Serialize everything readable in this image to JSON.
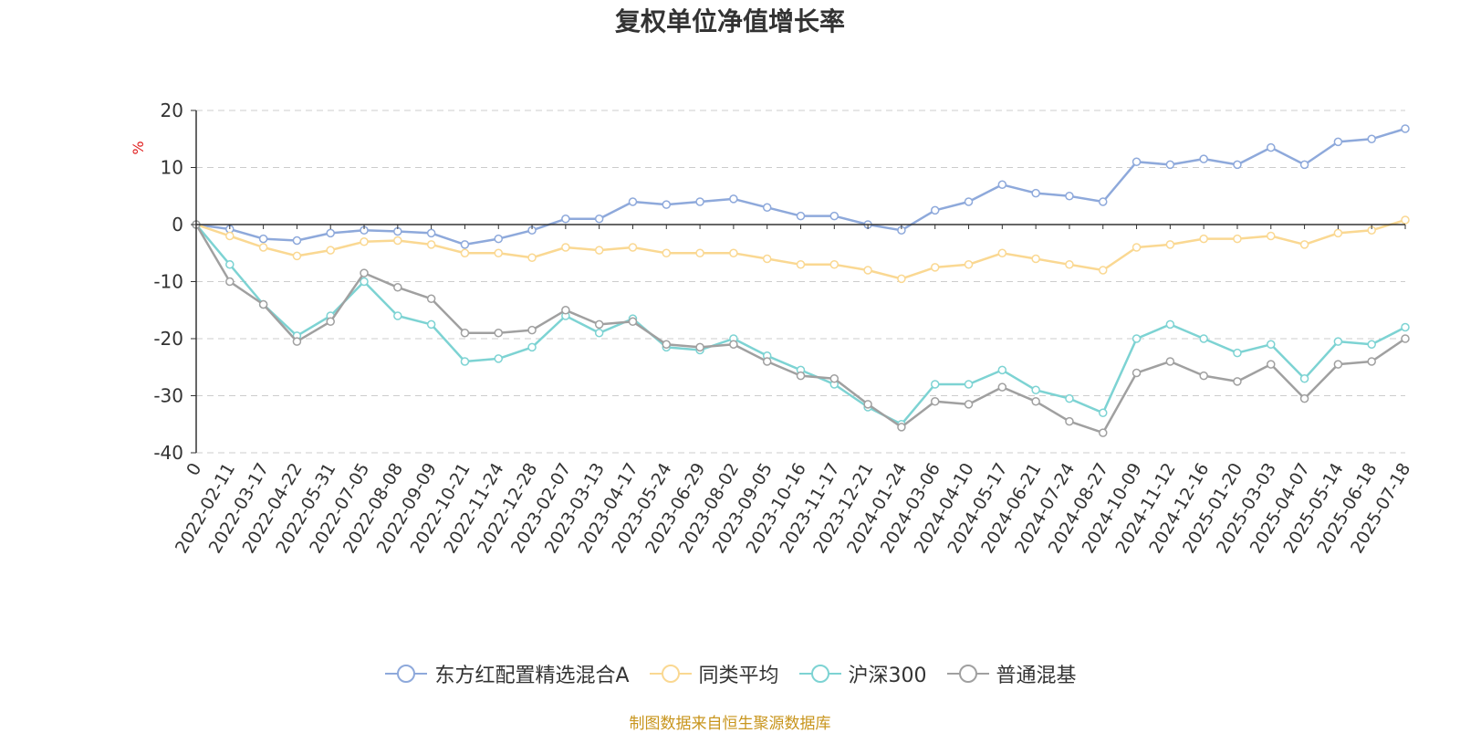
{
  "chart_data": {
    "type": "line",
    "title": "复权单位净值增长率",
    "ylabel": "%",
    "ylim": [
      -40,
      20
    ],
    "yticks": [
      -40,
      -30,
      -20,
      -10,
      0,
      10,
      20
    ],
    "grid": true,
    "legend_position": "bottom",
    "x": [
      "0",
      "2022-02-11",
      "2022-03-17",
      "2022-04-22",
      "2022-05-31",
      "2022-07-05",
      "2022-08-08",
      "2022-09-09",
      "2022-10-21",
      "2022-11-24",
      "2022-12-28",
      "2023-02-07",
      "2023-03-13",
      "2023-04-17",
      "2023-05-24",
      "2023-06-29",
      "2023-08-02",
      "2023-09-05",
      "2023-10-16",
      "2023-11-17",
      "2023-12-21",
      "2024-01-24",
      "2024-03-06",
      "2024-04-10",
      "2024-05-17",
      "2024-06-21",
      "2024-07-24",
      "2024-08-27",
      "2024-10-09",
      "2024-11-12",
      "2024-12-16",
      "2025-01-20",
      "2025-03-03",
      "2025-04-07",
      "2025-05-14",
      "2025-06-18",
      "2025-07-18"
    ],
    "series": [
      {
        "name": "东方红配置精选混合A",
        "color": "#8ea9db",
        "values": [
          0,
          -0.8,
          -2.5,
          -2.8,
          -1.5,
          -1.0,
          -1.2,
          -1.5,
          -3.5,
          -2.5,
          -1.0,
          1.0,
          1.0,
          4.0,
          3.5,
          4.0,
          4.5,
          3.0,
          1.5,
          1.5,
          0,
          -1.0,
          2.5,
          4.0,
          7.0,
          5.5,
          5.0,
          4.0,
          11.0,
          10.5,
          11.5,
          10.5,
          13.5,
          10.5,
          14.5,
          15.0,
          16.8
        ]
      },
      {
        "name": "同类平均",
        "color": "#fad892",
        "values": [
          0,
          -2.0,
          -4.0,
          -5.5,
          -4.5,
          -3.0,
          -2.8,
          -3.5,
          -5.0,
          -5.0,
          -5.8,
          -4.0,
          -4.5,
          -4.0,
          -5.0,
          -5.0,
          -5.0,
          -6.0,
          -7.0,
          -7.0,
          -8.0,
          -9.5,
          -7.5,
          -7.0,
          -5.0,
          -6.0,
          -7.0,
          -8.0,
          -4.0,
          -3.5,
          -2.5,
          -2.5,
          -2.0,
          -3.5,
          -1.5,
          -1.0,
          0.8
        ]
      },
      {
        "name": "沪深300",
        "color": "#7dd3d3",
        "values": [
          0,
          -7.0,
          -14.0,
          -19.5,
          -16.0,
          -10.0,
          -16.0,
          -17.5,
          -24.0,
          -23.5,
          -21.5,
          -16.0,
          -19.0,
          -16.5,
          -21.5,
          -22.0,
          -20.0,
          -23.0,
          -25.5,
          -28.0,
          -32.0,
          -35.0,
          -28.0,
          -28.0,
          -25.5,
          -29.0,
          -30.5,
          -33.0,
          -20.0,
          -17.5,
          -20.0,
          -22.5,
          -21.0,
          -27.0,
          -20.5,
          -21.0,
          -18.0
        ]
      },
      {
        "name": "普通混基",
        "color": "#a0a0a0",
        "values": [
          0,
          -10.0,
          -14.0,
          -20.5,
          -17.0,
          -8.5,
          -11.0,
          -13.0,
          -19.0,
          -19.0,
          -18.5,
          -15.0,
          -17.5,
          -17.0,
          -21.0,
          -21.5,
          -21.0,
          -24.0,
          -26.5,
          -27.0,
          -31.5,
          -35.5,
          -31.0,
          -31.5,
          -28.5,
          -31.0,
          -34.5,
          -36.5,
          -26.0,
          -24.0,
          -26.5,
          -27.5,
          -24.5,
          -30.5,
          -24.5,
          -24.0,
          -20.0
        ]
      }
    ]
  },
  "footer": {
    "source": "制图数据来自恒生聚源数据库"
  }
}
